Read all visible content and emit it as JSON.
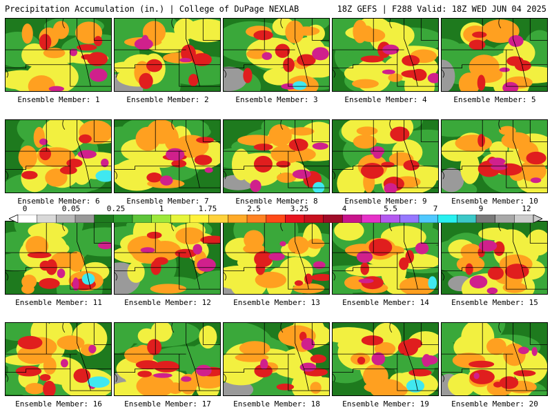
{
  "header": {
    "left": "Precipitation Accumulation (in.) | College of DuPage NEXLAB",
    "right": "18Z GEFS | F288 Valid: 18Z WED JUN 04 2025"
  },
  "colorbar": {
    "labels": [
      "0",
      "0.05",
      "0.25",
      "1",
      "1.75",
      "2.5",
      "3.25",
      "4",
      "5.5",
      "7",
      "9",
      "12"
    ],
    "colors": [
      "#ffffff",
      "#d8d8d8",
      "#b8b8b8",
      "#989898",
      "#1e7a1e",
      "#2e9e2e",
      "#5ec43a",
      "#9ee83c",
      "#e6f53c",
      "#fff23c",
      "#ffd23c",
      "#ffaa28",
      "#ff8222",
      "#ff4a18",
      "#e8141e",
      "#c8101e",
      "#a00c28",
      "#c8148c",
      "#e632c8",
      "#b45af0",
      "#9678ff",
      "#50c8ff",
      "#28f0f0",
      "#3cc8c8",
      "#7a7a7a",
      "#a8a8a8",
      "#cccccc"
    ]
  },
  "members": [
    {
      "label": "Ensemble Member: 1"
    },
    {
      "label": "Ensemble Member: 2"
    },
    {
      "label": "Ensemble Member: 3"
    },
    {
      "label": "Ensemble Member: 4"
    },
    {
      "label": "Ensemble Member: 5"
    },
    {
      "label": "Ensemble Member: 6"
    },
    {
      "label": "Ensemble Member: 7"
    },
    {
      "label": "Ensemble Member: 8"
    },
    {
      "label": "Ensemble Member: 9"
    },
    {
      "label": "Ensemble Member: 10"
    },
    {
      "label": "Ensemble Member: 11"
    },
    {
      "label": "Ensemble Member: 12"
    },
    {
      "label": "Ensemble Member: 13"
    },
    {
      "label": "Ensemble Member: 14"
    },
    {
      "label": "Ensemble Member: 15"
    },
    {
      "label": "Ensemble Member: 16"
    },
    {
      "label": "Ensemble Member: 17"
    },
    {
      "label": "Ensemble Member: 18"
    },
    {
      "label": "Ensemble Member: 19"
    },
    {
      "label": "Ensemble Member: 20"
    }
  ],
  "map_colors": {
    "dark_green": "#1e7a1e",
    "green": "#3aa83a",
    "yellow": "#f2f040",
    "orange": "#ffa020",
    "red": "#e01e1e",
    "magenta": "#d0208c",
    "cyan": "#40e8f0",
    "gray": "#9a9a9a",
    "state_lines": "#000000"
  }
}
